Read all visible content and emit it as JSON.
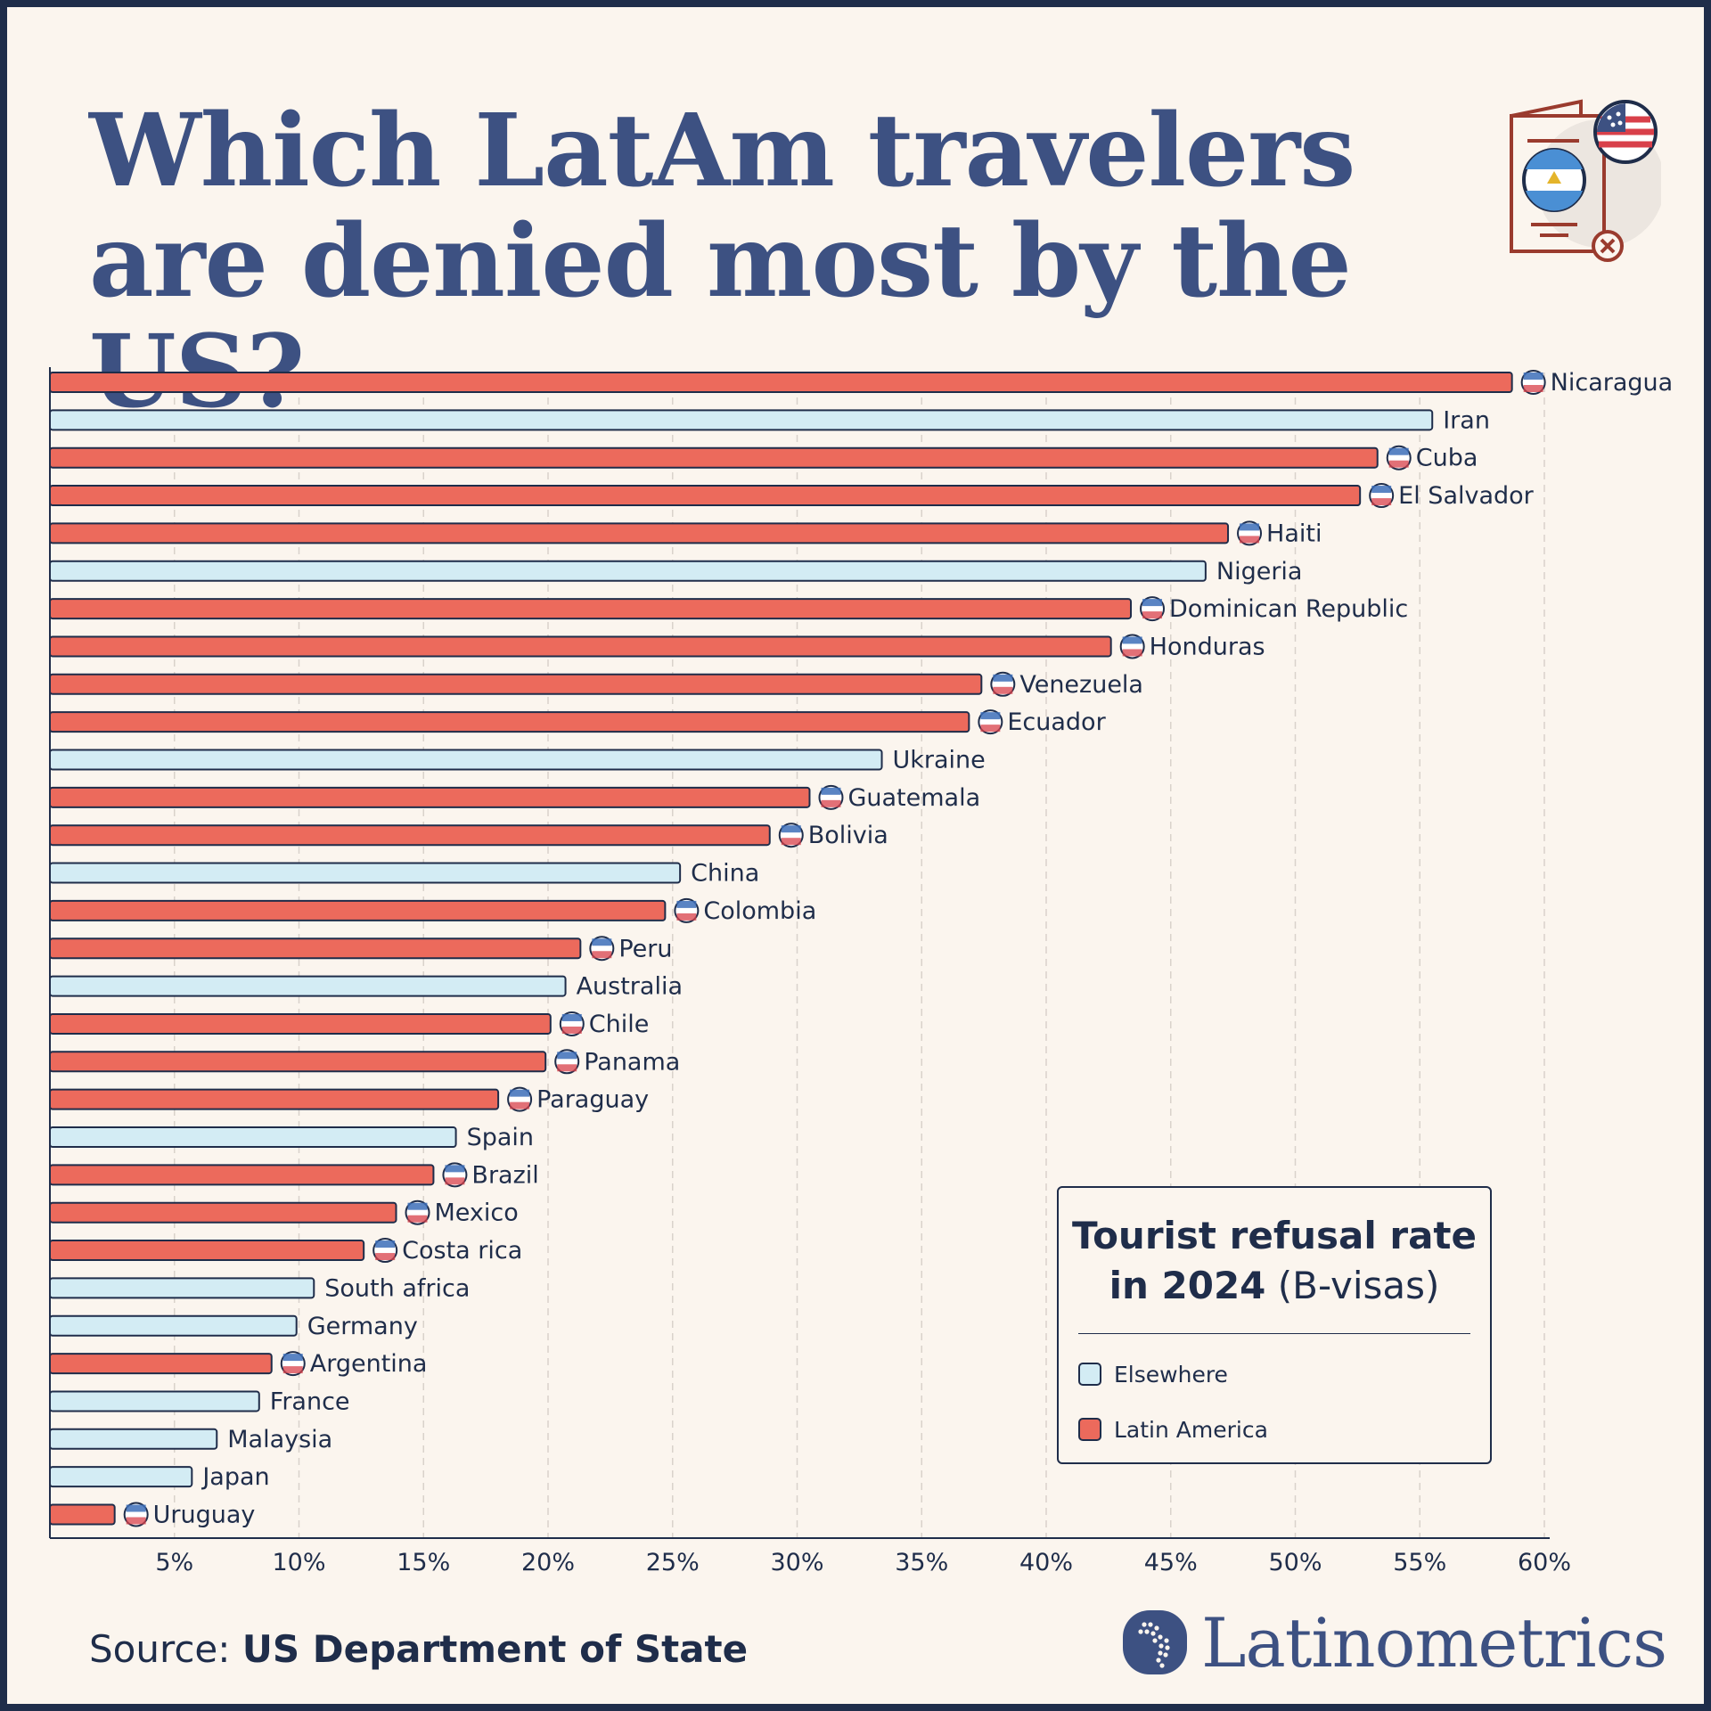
{
  "title": "Which LatAm travelers are denied most by the US?",
  "source_label": "Source:",
  "source_value": "US Department of State",
  "brand": "Latinometrics",
  "legend": {
    "title_bold": "Tourist refusal rate in 2024",
    "title_rest": "(B-visas)",
    "items": [
      {
        "label": "Elsewhere",
        "color": "#d3ecf4"
      },
      {
        "label": "Latin America",
        "color": "#ec6a5c"
      }
    ]
  },
  "colors": {
    "latam": "#ec6a5c",
    "elsewhere": "#d3ecf4",
    "outline": "#1f2d4a",
    "title": "#3d5182",
    "background": "#fbf5ee"
  },
  "chart_data": {
    "type": "bar",
    "orientation": "horizontal",
    "xlim": [
      0,
      60
    ],
    "x_ticks": [
      "5%",
      "10%",
      "15%",
      "20%",
      "25%",
      "30%",
      "35%",
      "40%",
      "45%",
      "50%",
      "55%",
      "60%"
    ],
    "grid": "vertical dashed",
    "series": [
      {
        "name": "Latin America",
        "values": [
          58.7,
          null,
          53.3,
          52.6,
          47.3,
          null,
          43.4,
          42.6,
          37.4,
          36.9,
          null,
          30.5,
          28.9,
          null,
          24.7,
          21.3,
          null,
          20.1,
          19.9,
          18.0,
          null,
          15.4,
          13.9,
          12.6,
          null,
          null,
          8.9,
          null,
          null,
          null,
          2.6
        ]
      },
      {
        "name": "Elsewhere",
        "values": [
          null,
          55.5,
          null,
          null,
          null,
          46.4,
          null,
          null,
          null,
          null,
          33.4,
          null,
          null,
          25.3,
          null,
          null,
          20.7,
          null,
          null,
          null,
          16.3,
          null,
          null,
          null,
          10.6,
          9.9,
          null,
          8.4,
          6.7,
          5.7,
          null
        ]
      }
    ],
    "categories": [
      "Nicaragua",
      "Iran",
      "Cuba",
      "El Salvador",
      "Haiti",
      "Nigeria",
      "Dominican Republic",
      "Honduras",
      "Venezuela",
      "Ecuador",
      "Ukraine",
      "Guatemala",
      "Bolivia",
      "China",
      "Colombia",
      "Peru",
      "Australia",
      "Chile",
      "Panama",
      "Paraguay",
      "Spain",
      "Brazil",
      "Mexico",
      "Costa rica",
      "South africa",
      "Germany",
      "Argentina",
      "France",
      "Malaysia",
      "Japan",
      "Uruguay"
    ],
    "flag_icons": [
      "nicaragua-flag-icon",
      null,
      "cuba-flag-icon",
      "el-salvador-flag-icon",
      "haiti-flag-icon",
      null,
      "dominican-republic-flag-icon",
      "honduras-flag-icon",
      "venezuela-flag-icon",
      "ecuador-flag-icon",
      null,
      "guatemala-flag-icon",
      "bolivia-flag-icon",
      null,
      "colombia-flag-icon",
      "peru-flag-icon",
      null,
      "chile-flag-icon",
      "panama-flag-icon",
      "paraguay-flag-icon",
      null,
      "brazil-flag-icon",
      "mexico-flag-icon",
      "costa-rica-flag-icon",
      null,
      null,
      "argentina-flag-icon",
      null,
      null,
      null,
      "uruguay-flag-icon"
    ]
  }
}
